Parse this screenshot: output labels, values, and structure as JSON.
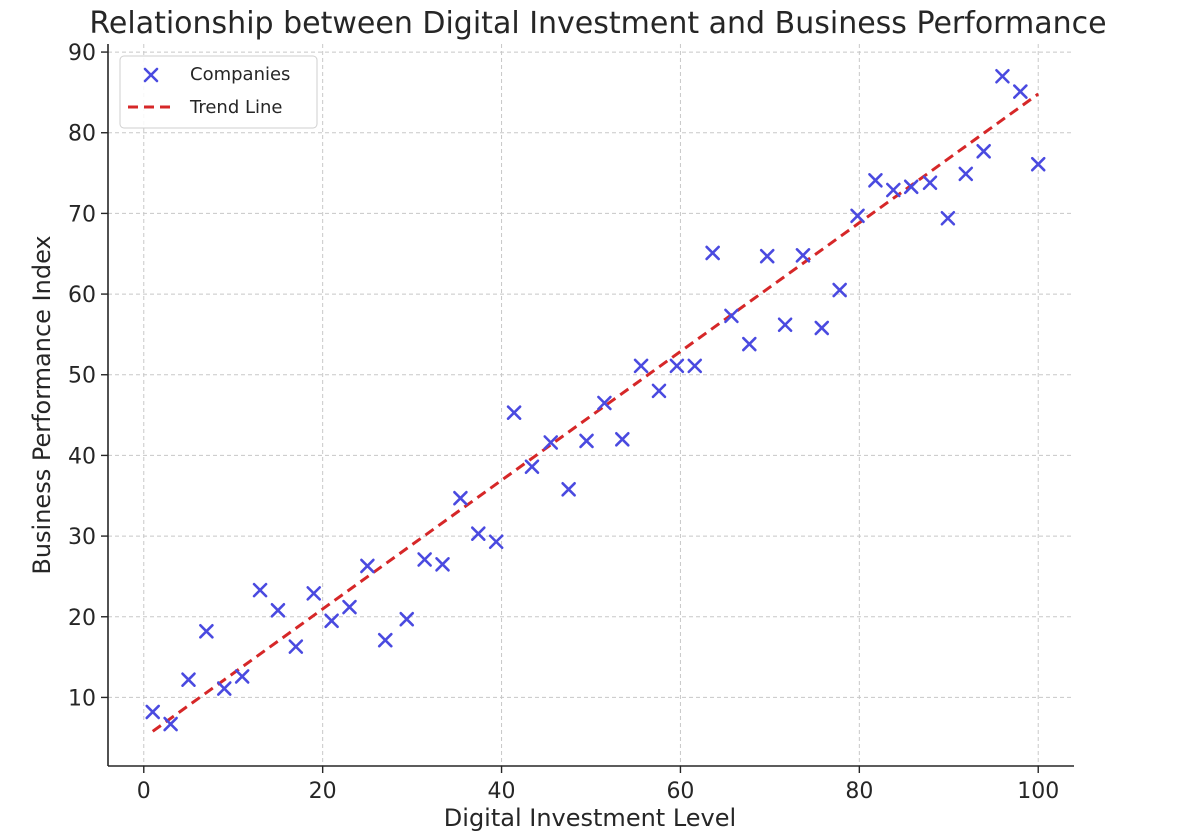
{
  "chart_data": {
    "type": "scatter",
    "title": "Relationship between Digital Investment and Business Performance",
    "xlabel": "Digital Investment Level",
    "ylabel": "Business Performance Index",
    "xlim": [
      -4,
      104
    ],
    "ylim": [
      1.5,
      91
    ],
    "xticks": [
      0,
      20,
      40,
      60,
      80,
      100
    ],
    "yticks": [
      10,
      20,
      30,
      40,
      50,
      60,
      70,
      80,
      90
    ],
    "grid": true,
    "legend_position": "top-left",
    "series": [
      {
        "name": "Companies",
        "marker": "x",
        "color": "#4a4ae0",
        "points": [
          [
            1,
            8.2
          ],
          [
            3,
            6.7
          ],
          [
            5,
            12.2
          ],
          [
            7,
            18.2
          ],
          [
            9,
            11.1
          ],
          [
            11,
            12.6
          ],
          [
            13,
            23.3
          ],
          [
            15,
            20.8
          ],
          [
            17,
            16.3
          ],
          [
            19,
            22.9
          ],
          [
            21,
            19.5
          ],
          [
            23,
            21.2
          ],
          [
            25,
            26.3
          ],
          [
            27,
            17.1
          ],
          [
            29.4,
            19.7
          ],
          [
            31.4,
            27.1
          ],
          [
            33.4,
            26.5
          ],
          [
            35.4,
            34.7
          ],
          [
            37.4,
            30.3
          ],
          [
            39.4,
            29.3
          ],
          [
            41.4,
            45.3
          ],
          [
            43.4,
            38.6
          ],
          [
            45.5,
            41.6
          ],
          [
            47.5,
            35.8
          ],
          [
            49.5,
            41.8
          ],
          [
            51.5,
            46.5
          ],
          [
            53.5,
            42.0
          ],
          [
            55.6,
            51.1
          ],
          [
            57.6,
            48.0
          ],
          [
            59.6,
            51.1
          ],
          [
            61.6,
            51.1
          ],
          [
            63.6,
            65.1
          ],
          [
            65.7,
            57.3
          ],
          [
            67.7,
            53.8
          ],
          [
            69.7,
            64.7
          ],
          [
            71.7,
            56.2
          ],
          [
            73.7,
            64.8
          ],
          [
            75.8,
            55.8
          ],
          [
            77.8,
            60.5
          ],
          [
            79.8,
            69.7
          ],
          [
            81.8,
            74.1
          ],
          [
            83.8,
            72.9
          ],
          [
            85.8,
            73.3
          ],
          [
            87.9,
            73.8
          ],
          [
            89.9,
            69.4
          ],
          [
            91.9,
            74.9
          ],
          [
            93.9,
            77.7
          ],
          [
            96,
            87.0
          ],
          [
            98,
            85.1
          ],
          [
            100,
            76.1
          ]
        ]
      },
      {
        "name": "Trend Line",
        "style": "dashed",
        "color": "#d62728",
        "points": [
          [
            1,
            5.8
          ],
          [
            100,
            84.8
          ]
        ]
      }
    ]
  }
}
